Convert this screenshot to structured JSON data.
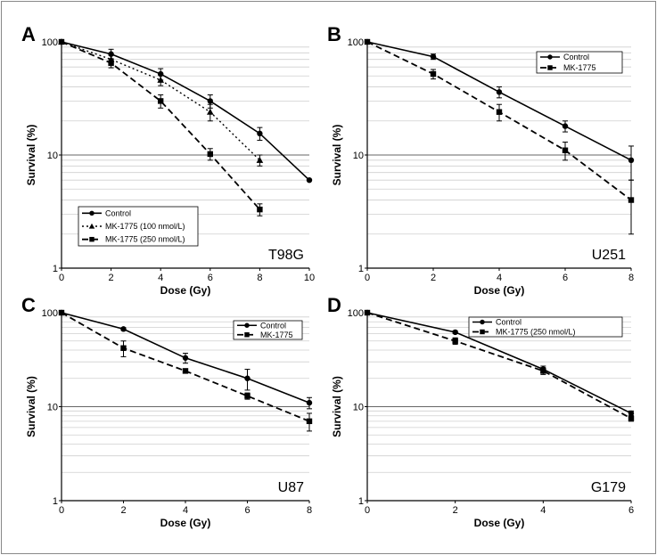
{
  "chart_data": [
    {
      "type": "line",
      "panel": "A",
      "cell_line": "T98G",
      "xlabel": "Dose (Gy)",
      "ylabel": "Survival (%)",
      "xlim": [
        0,
        10
      ],
      "ylim": [
        1,
        100
      ],
      "yscale": "log",
      "xticks": [
        0,
        2,
        4,
        6,
        8,
        10
      ],
      "yticks": [
        1,
        10,
        100
      ],
      "grid": "horizontal log minor lines",
      "legend_position": "bottom-left",
      "series": [
        {
          "name": "Control",
          "style": "solid",
          "marker": "circle",
          "x": [
            0,
            2,
            4,
            6,
            8,
            10
          ],
          "y": [
            100,
            78,
            52,
            30,
            15.5,
            6
          ],
          "err": [
            0,
            8,
            6,
            4,
            2,
            0
          ]
        },
        {
          "name": "MK-1775 (100 nmol/L)",
          "style": "dotted",
          "marker": "triangle",
          "x": [
            0,
            2,
            4,
            6,
            8
          ],
          "y": [
            100,
            70,
            46,
            24,
            9
          ],
          "err": [
            0,
            6,
            5,
            4,
            1
          ]
        },
        {
          "name": "MK-1775 (250 nmol/L)",
          "style": "dashed",
          "marker": "square",
          "x": [
            0,
            2,
            4,
            6,
            8
          ],
          "y": [
            100,
            65,
            30,
            10.2,
            3.3
          ],
          "err": [
            0,
            6,
            4,
            1.2,
            0.4
          ]
        }
      ]
    },
    {
      "type": "line",
      "panel": "B",
      "cell_line": "U251",
      "xlabel": "Dose (Gy)",
      "ylabel": "Survival (%)",
      "xlim": [
        0,
        8
      ],
      "ylim": [
        1,
        100
      ],
      "yscale": "log",
      "xticks": [
        0,
        2,
        4,
        6,
        8
      ],
      "yticks": [
        1,
        10,
        100
      ],
      "grid": "horizontal log minor lines",
      "legend_position": "top-right",
      "series": [
        {
          "name": "Control",
          "style": "solid",
          "marker": "circle",
          "x": [
            0,
            2,
            4,
            6,
            8
          ],
          "y": [
            100,
            74,
            36,
            18,
            9
          ],
          "err": [
            0,
            4,
            4,
            2,
            3
          ]
        },
        {
          "name": "MK-1775",
          "style": "dashed",
          "marker": "square",
          "x": [
            0,
            2,
            4,
            6,
            8
          ],
          "y": [
            100,
            52,
            24,
            11,
            4
          ],
          "err": [
            0,
            5,
            4,
            2,
            2
          ]
        }
      ]
    },
    {
      "type": "line",
      "panel": "C",
      "cell_line": "U87",
      "xlabel": "Dose (Gy)",
      "ylabel": "Survival (%)",
      "xlim": [
        0,
        8
      ],
      "ylim": [
        1,
        100
      ],
      "yscale": "log",
      "xticks": [
        0,
        2,
        4,
        6,
        8
      ],
      "yticks": [
        1,
        10,
        100
      ],
      "grid": "horizontal log minor lines",
      "legend_position": "top-right",
      "series": [
        {
          "name": "Control",
          "style": "solid",
          "marker": "circle",
          "x": [
            0,
            2,
            4,
            6,
            8
          ],
          "y": [
            100,
            67,
            33,
            20,
            11
          ],
          "err": [
            0,
            2,
            4,
            5,
            1.5
          ]
        },
        {
          "name": "MK-1775",
          "style": "dashed",
          "marker": "square",
          "x": [
            0,
            2,
            4,
            6,
            8
          ],
          "y": [
            100,
            42,
            24,
            13,
            7
          ],
          "err": [
            0,
            8,
            1,
            1,
            1.5
          ]
        }
      ]
    },
    {
      "type": "line",
      "panel": "D",
      "cell_line": "G179",
      "xlabel": "Dose (Gy)",
      "ylabel": "Survival (%)",
      "xlim": [
        0,
        6
      ],
      "ylim": [
        1,
        100
      ],
      "yscale": "log",
      "xticks": [
        0,
        2,
        4,
        6
      ],
      "yticks": [
        1,
        10,
        100
      ],
      "grid": "horizontal log minor lines",
      "legend_position": "top-right",
      "series": [
        {
          "name": "Control",
          "style": "solid",
          "marker": "circle",
          "x": [
            0,
            2,
            4,
            6
          ],
          "y": [
            100,
            62,
            25,
            8.5
          ],
          "err": [
            0,
            2,
            2,
            0.5
          ]
        },
        {
          "name": "MK-1775 (250 nmol/L)",
          "style": "dashed",
          "marker": "square",
          "x": [
            0,
            2,
            4,
            6
          ],
          "y": [
            100,
            50,
            24,
            7.5
          ],
          "err": [
            0,
            4,
            2,
            0.5
          ]
        }
      ]
    }
  ]
}
